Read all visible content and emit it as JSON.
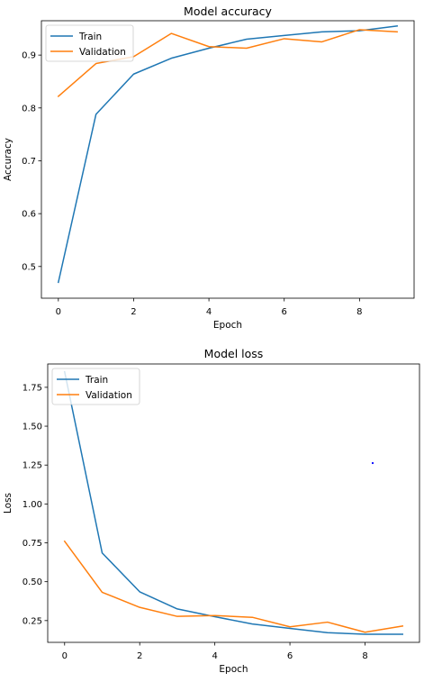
{
  "chart_data": [
    {
      "type": "line",
      "title": "Model accuracy",
      "xlabel": "Epoch",
      "ylabel": "Accuracy",
      "x": [
        0,
        1,
        2,
        3,
        4,
        5,
        6,
        7,
        8,
        9
      ],
      "xlim": [
        -0.45,
        9.45
      ],
      "ylim": [
        0.44,
        0.965
      ],
      "xticks": [
        0,
        2,
        4,
        6,
        8
      ],
      "xtick_labels": [
        "0",
        "2",
        "4",
        "6",
        "8"
      ],
      "yticks": [
        0.5,
        0.6,
        0.7,
        0.8,
        0.9
      ],
      "ytick_labels": [
        "0.5",
        "0.6",
        "0.7",
        "0.8",
        "0.9"
      ],
      "grid": false,
      "legend_position": "upper-left",
      "series": [
        {
          "name": "Train",
          "color": "#1f77b4",
          "values": [
            0.47,
            0.788,
            0.864,
            0.894,
            0.913,
            0.93,
            0.937,
            0.944,
            0.946,
            0.955
          ]
        },
        {
          "name": "Validation",
          "color": "#ff7f0e",
          "values": [
            0.822,
            0.884,
            0.897,
            0.941,
            0.916,
            0.913,
            0.931,
            0.925,
            0.948,
            0.944
          ]
        }
      ]
    },
    {
      "type": "line",
      "title": "Model loss",
      "xlabel": "Epoch",
      "ylabel": "Loss",
      "x": [
        0,
        1,
        2,
        3,
        4,
        5,
        6,
        7,
        8,
        9
      ],
      "xlim": [
        -0.45,
        9.45
      ],
      "ylim": [
        0.11,
        1.9
      ],
      "xticks": [
        0,
        2,
        4,
        6,
        8
      ],
      "xtick_labels": [
        "0",
        "2",
        "4",
        "6",
        "8"
      ],
      "yticks": [
        0.25,
        0.5,
        0.75,
        1.0,
        1.25,
        1.5,
        1.75
      ],
      "ytick_labels": [
        "0.25",
        "0.50",
        "0.75",
        "1.00",
        "1.25",
        "1.50",
        "1.75"
      ],
      "grid": false,
      "legend_position": "upper-left",
      "series": [
        {
          "name": "Train",
          "color": "#1f77b4",
          "values": [
            1.85,
            0.685,
            0.435,
            0.325,
            0.275,
            0.228,
            0.2,
            0.172,
            0.162,
            0.162
          ]
        },
        {
          "name": "Validation",
          "color": "#ff7f0e",
          "values": [
            0.76,
            0.432,
            0.335,
            0.277,
            0.282,
            0.271,
            0.21,
            0.24,
            0.175,
            0.215
          ]
        }
      ]
    }
  ]
}
